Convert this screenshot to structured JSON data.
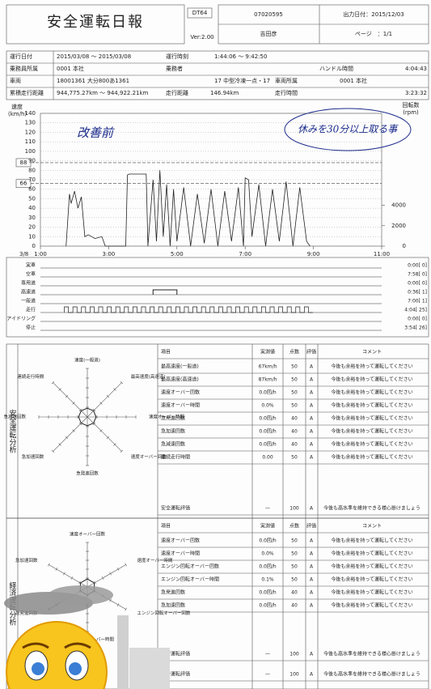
{
  "header": {
    "title": "安全運転日報",
    "code": "DT64",
    "number": "07020595",
    "print_date": "出力日付：2015/12/03",
    "version": "Ver:2.00",
    "driver": "吉田彦",
    "page": "ページ　：1/1"
  },
  "info": {
    "rows": [
      [
        "運行日付",
        "2015/03/08 ～ 2015/03/08",
        "運行時刻",
        "1:44:06 ～ 9:42:50"
      ],
      [
        "乗務員所属",
        "0001 本社",
        "乗務者",
        "ハンドル時間",
        "4:04:43"
      ],
      [
        "車両",
        "18001361 大分800あ1361",
        "17 中型冷凍一点・17",
        "車両所属",
        "0001 本社"
      ],
      [
        "累積走行距離",
        "944,775.27km ～ 944,922.21km",
        "走行距離",
        "146.94km",
        "走行時間",
        "3:23:32"
      ]
    ]
  },
  "chart_data": {
    "type": "line",
    "y_label": "速度",
    "y_unit": "(km/h)",
    "y2_label": "回転数",
    "y2_unit": "(rpm)",
    "date": "3/8",
    "ylim": [
      0,
      140
    ],
    "yticks": [
      0,
      10,
      20,
      30,
      40,
      50,
      60,
      70,
      80,
      90,
      100,
      110,
      120,
      130,
      140
    ],
    "y2lim": [
      0,
      13000
    ],
    "y2ticks": [
      0,
      2000,
      4000
    ],
    "xlim": [
      1,
      11
    ],
    "xticks": [
      {
        "value": 1,
        "label": "1:00"
      },
      {
        "value": 3,
        "label": "3:00"
      },
      {
        "value": 5,
        "label": "5:00"
      },
      {
        "value": 7,
        "label": "7:00"
      },
      {
        "value": 9,
        "label": "9:00"
      },
      {
        "value": 11,
        "label": "11:00"
      }
    ],
    "markers": [
      {
        "value": 88,
        "label": "88"
      },
      {
        "value": 66,
        "label": "66"
      }
    ],
    "series": [
      {
        "name": "速度",
        "color": "#222",
        "x": [
          1.75,
          1.85,
          1.9,
          2.0,
          2.1,
          2.2,
          2.3,
          2.4,
          2.6,
          2.8,
          2.9,
          3.5,
          3.55,
          3.6,
          4.1,
          4.15,
          4.3,
          4.4,
          4.5,
          4.6,
          4.7,
          4.8,
          4.9,
          5.0,
          5.2,
          5.4,
          5.6,
          5.8,
          6.0,
          6.2,
          6.4,
          6.6,
          6.8,
          6.95,
          7.0,
          7.1,
          7.2,
          7.4,
          7.6,
          7.8,
          8.0,
          8.2,
          8.4,
          8.6,
          8.8,
          8.9
        ],
        "values": [
          0,
          55,
          45,
          58,
          40,
          52,
          10,
          12,
          8,
          10,
          0,
          0,
          75,
          76,
          76,
          0,
          70,
          5,
          80,
          10,
          65,
          0,
          60,
          5,
          62,
          0,
          55,
          3,
          60,
          0,
          58,
          5,
          62,
          0,
          72,
          70,
          10,
          65,
          0,
          60,
          5,
          68,
          0,
          62,
          5,
          0
        ]
      }
    ],
    "annotations": [
      "改善前",
      "休みを30分以上取る事"
    ]
  },
  "status": {
    "labels": [
      "実車",
      "空車",
      "専用道",
      "高速道",
      "一般道",
      "走行",
      "アイドリング",
      "停止"
    ],
    "values": [
      "0:00[ 0]",
      "7:58[ 0]",
      "0:00[ 0]",
      "0:36[ 1]",
      "7:00[ 1]",
      "4:04[ 25]",
      "0:00[ 0]",
      "3:54[ 26]"
    ]
  },
  "safety": {
    "section": "安全運転分析",
    "header": [
      "項目",
      "実測値",
      "点数",
      "評価",
      "コメント"
    ],
    "radar_labels": [
      "速度(一般道)",
      "最高速度(高速道)",
      "速度オーバー時間",
      "速度オーバー回数",
      "急発進回数",
      "急加速回数",
      "急減速回数",
      "連続走行時間"
    ],
    "rows": [
      [
        "最高速度(一般道)",
        "67km/h",
        "50",
        "A",
        "今後も余裕を持って運転してください"
      ],
      [
        "最高速度(高速道)",
        "87km/h",
        "50",
        "A",
        "今後も余裕を持って運転してください"
      ],
      [
        "速度オーバー回数",
        "0.0回/h",
        "50",
        "A",
        "今後も余裕を持って運転してください"
      ],
      [
        "速度オーバー時間",
        "0.0%",
        "50",
        "A",
        "今後も余裕を持って運転してください"
      ],
      [
        "急発進回数",
        "0.0回/h",
        "40",
        "A",
        "今後も余裕を持って運転してください"
      ],
      [
        "急加速回数",
        "0.0回/h",
        "40",
        "A",
        "今後も余裕を持って運転してください"
      ],
      [
        "急減速回数",
        "0.0回/h",
        "40",
        "A",
        "今後も余裕を持って運転してください"
      ],
      [
        "連続走行時間",
        "0.00",
        "50",
        "A",
        "今後も余裕を持って運転してください"
      ]
    ],
    "total": [
      "安全運転評価",
      "—",
      "100",
      "A",
      "今後も高水準を維持できる様心掛けましょう"
    ]
  },
  "economy": {
    "section": "経済運転分析",
    "header": [
      "項目",
      "実測値",
      "点数",
      "評価",
      "コメント"
    ],
    "radar_labels": [
      "速度オーバー回数",
      "速度オーバー時間",
      "エンジン回転オーバー回数",
      "エンジン回転オーバー時間",
      "急発進回数",
      "急加速回数"
    ],
    "rows": [
      [
        "速度オーバー回数",
        "0.0回/h",
        "50",
        "A",
        "今後も余裕を持って運転してください"
      ],
      [
        "速度オーバー時間",
        "0.0%",
        "50",
        "A",
        "今後も余裕を持って運転してください"
      ],
      [
        "エンジン回転オーバー回数",
        "0.0回/h",
        "50",
        "A",
        "今後も余裕を持って運転してください"
      ],
      [
        "エンジン回転オーバー時間",
        "0.1%",
        "50",
        "A",
        "今後も余裕を持って運転してください"
      ],
      [
        "急発進回数",
        "0.0回/h",
        "40",
        "A",
        "今後も余裕を持って運転してください"
      ],
      [
        "急加速回数",
        "0.0回/h",
        "40",
        "A",
        "今後も余裕を持って運転してください"
      ]
    ],
    "total": [
      "経済運転評価",
      "—",
      "100",
      "A",
      "今後も高水準を維持できる様心掛けましょう"
    ],
    "overall": [
      "総合運転評価",
      "—",
      "100",
      "A",
      "今後も高水準を維持できる様心掛けましょう"
    ]
  }
}
